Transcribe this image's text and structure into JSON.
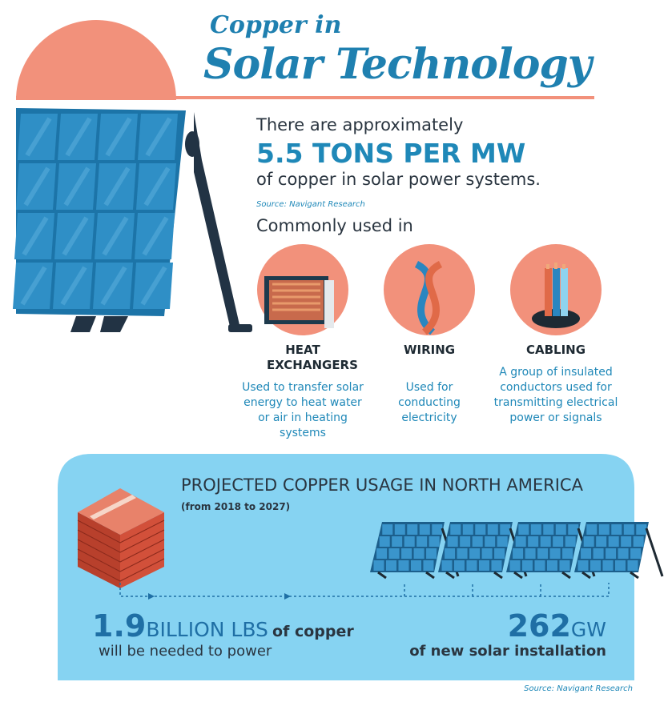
{
  "header": {
    "title_line1": "Copper in",
    "title_line2": "Solar Technology"
  },
  "stat": {
    "intro": "There are approximately",
    "headline": "5.5 TONS PER MW",
    "outro": "of copper in solar power systems.",
    "source": "Source: Navigant Research"
  },
  "uses": {
    "heading": "Commonly used in",
    "items": [
      {
        "title": "HEAT EXCHANGERS",
        "description": "Used to transfer solar energy to heat water or air in heating systems"
      },
      {
        "title": "WIRING",
        "description": "Used for conducting electricity"
      },
      {
        "title": "CABLING",
        "description": "A group of insulated conductors used for transmitting electrical power or signals"
      }
    ]
  },
  "projection": {
    "title": "PROJECTED COPPER USAGE IN NORTH AMERICA",
    "period": "(from 2018 to 2027)",
    "copper_amount": 1.9,
    "copper_unit": "BILLION LBS",
    "copper_suffix": "of copper",
    "copper_caption": "will be needed to power",
    "capacity_amount": 262,
    "capacity_unit": "GW",
    "capacity_caption": "of new solar installation",
    "source": "Source: Navigant Research"
  }
}
